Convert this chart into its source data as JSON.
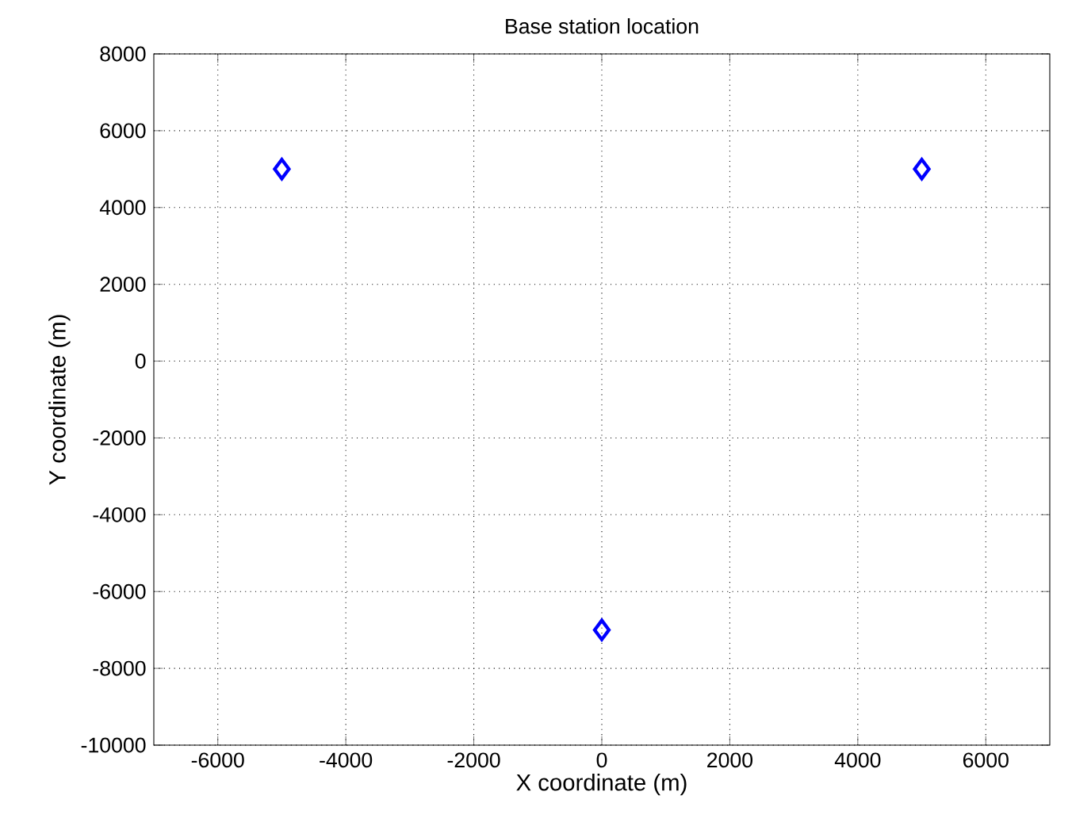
{
  "chart_data": {
    "type": "scatter",
    "title": "Base station location",
    "xlabel": "X coordinate (m)",
    "ylabel": "Y coordinate (m)",
    "x": [
      -5000,
      5000,
      0
    ],
    "series": [
      {
        "color": "#0000ff",
        "values": [
          5000,
          5000,
          -7000
        ]
      }
    ],
    "xlim": [
      -7000,
      7000
    ],
    "xticks": [
      -6000,
      -4000,
      -2000,
      0,
      2000,
      4000,
      6000
    ],
    "ylim": [
      -10000,
      8000
    ],
    "yticks": [
      -10000,
      -8000,
      -6000,
      -4000,
      -2000,
      0,
      2000,
      4000,
      6000,
      8000
    ],
    "grid": true,
    "marker": "diamond",
    "line_style": "none"
  }
}
